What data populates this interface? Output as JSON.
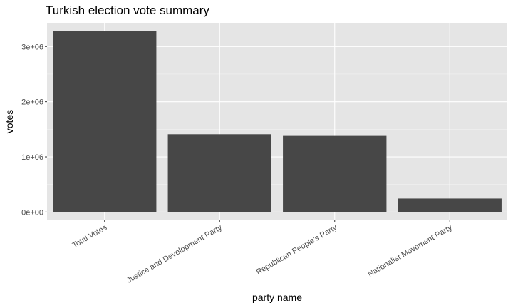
{
  "chart_data": {
    "type": "bar",
    "title": "Turkish election vote summary",
    "xlabel": "party name",
    "ylabel": "votes",
    "categories": [
      "Total Votes",
      "Justice and Development Party",
      "Republican People's Party",
      "Nationalist Movement Party"
    ],
    "values": [
      3280000,
      1410000,
      1380000,
      245000
    ],
    "ylim": [
      -150000,
      3430000
    ],
    "yticks": [
      0,
      1000000,
      2000000,
      3000000
    ],
    "ytick_labels": [
      "0e+00",
      "1e+06",
      "2e+06",
      "3e+06"
    ],
    "grid": true,
    "colors": {
      "panel": "#e5e5e5",
      "bar": "#474747",
      "grid_major": "#ffffff",
      "grid_minor": "#f2f2f2",
      "tick_text": "#4d4d4d",
      "tick_mark": "#333333"
    }
  }
}
